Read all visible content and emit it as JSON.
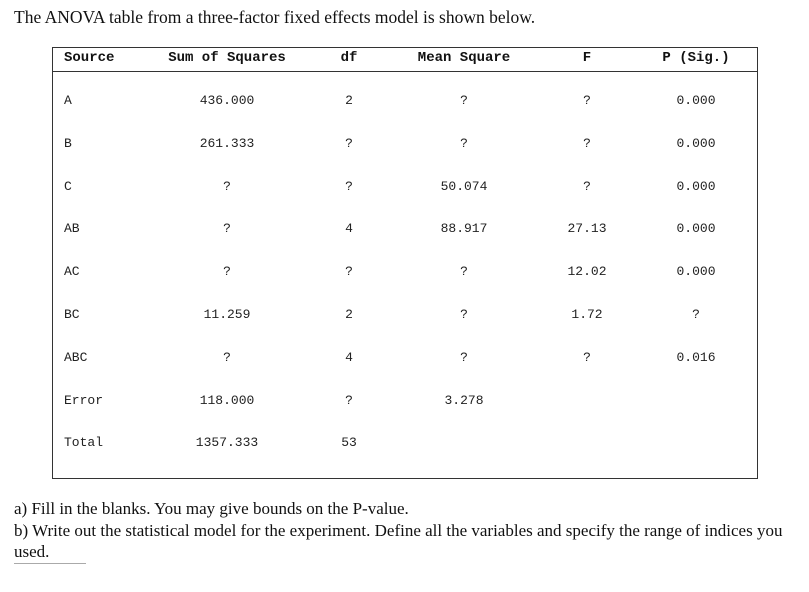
{
  "intro": "The ANOVA table from a three-factor fixed effects model is shown below.",
  "table": {
    "header": [
      "Source",
      "Sum of Squares",
      "df",
      "Mean Square",
      "F",
      "P (Sig.)"
    ],
    "rows": [
      [
        "A",
        "436.000",
        "2",
        "?",
        "?",
        "0.000"
      ],
      [
        "B",
        "261.333",
        "?",
        "?",
        "?",
        "0.000"
      ],
      [
        "C",
        "?",
        "?",
        "50.074",
        "?",
        "0.000"
      ],
      [
        "AB",
        "?",
        "4",
        "88.917",
        "27.13",
        "0.000"
      ],
      [
        "AC",
        "?",
        "?",
        "?",
        "12.02",
        "0.000"
      ],
      [
        "BC",
        "11.259",
        "2",
        "?",
        "1.72",
        "?"
      ],
      [
        "ABC",
        "?",
        "4",
        "?",
        "?",
        "0.016"
      ],
      [
        "Error",
        "118.000",
        "?",
        "3.278"
      ],
      [
        "Total",
        "1357.333",
        "53"
      ]
    ]
  },
  "questions": [
    "a) Fill in the blanks. You may give bounds on the P-value.",
    "b) Write out the statistical model for the experiment. Define all the variables and specify the range of indices you used."
  ]
}
